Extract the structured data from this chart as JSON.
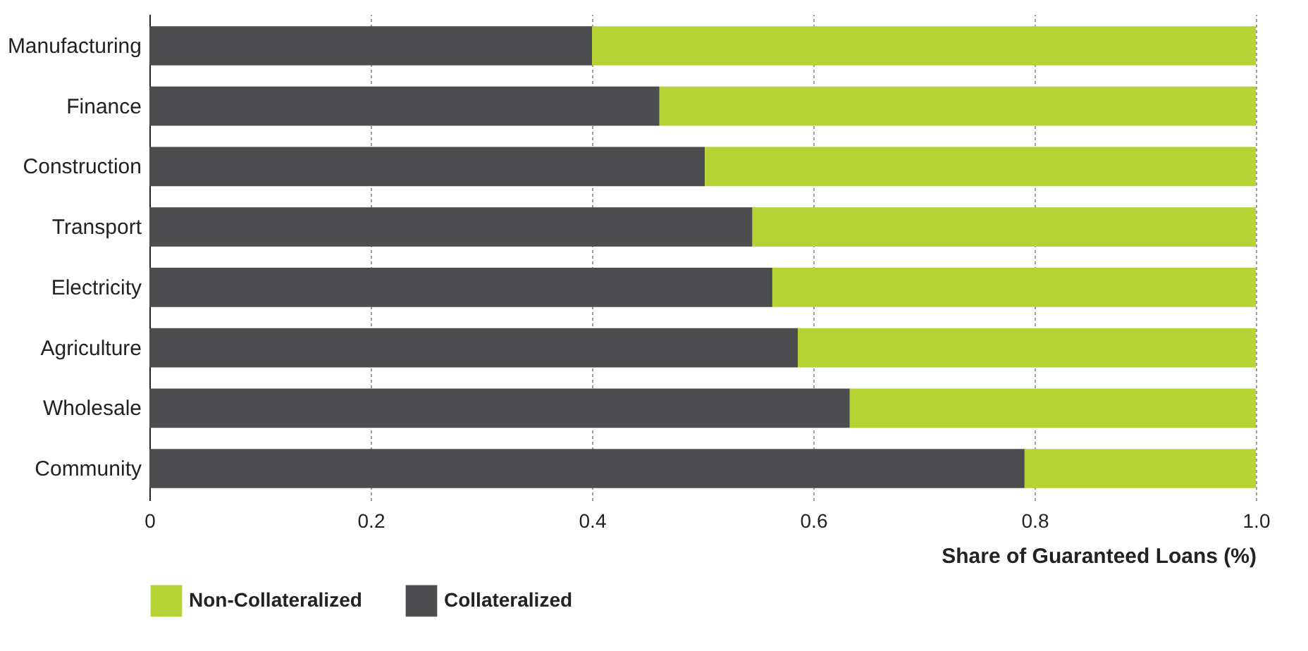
{
  "chart_data": {
    "type": "bar",
    "orientation": "horizontal",
    "stacked": true,
    "categories": [
      "Manufacturing",
      "Finance",
      "Construction",
      "Transport",
      "Electricity",
      "Agriculture",
      "Wholesale",
      "Community"
    ],
    "series": [
      {
        "name": "Collateralized",
        "color": "#4d4d4f",
        "values": [
          0.4,
          0.461,
          0.502,
          0.545,
          0.563,
          0.586,
          0.633,
          0.791
        ]
      },
      {
        "name": "Non-Collateralized",
        "color": "#b5d334",
        "values": [
          0.6,
          0.539,
          0.498,
          0.455,
          0.437,
          0.414,
          0.367,
          0.209
        ]
      }
    ],
    "xlabel": "Share of Guaranteed Loans (%)",
    "xlim": [
      0,
      1
    ],
    "xticks": [
      0,
      0.2,
      0.4,
      0.6,
      0.8,
      {
        "value": 1,
        "label": "1.0"
      }
    ],
    "grid": "x",
    "legend": "bottom"
  }
}
